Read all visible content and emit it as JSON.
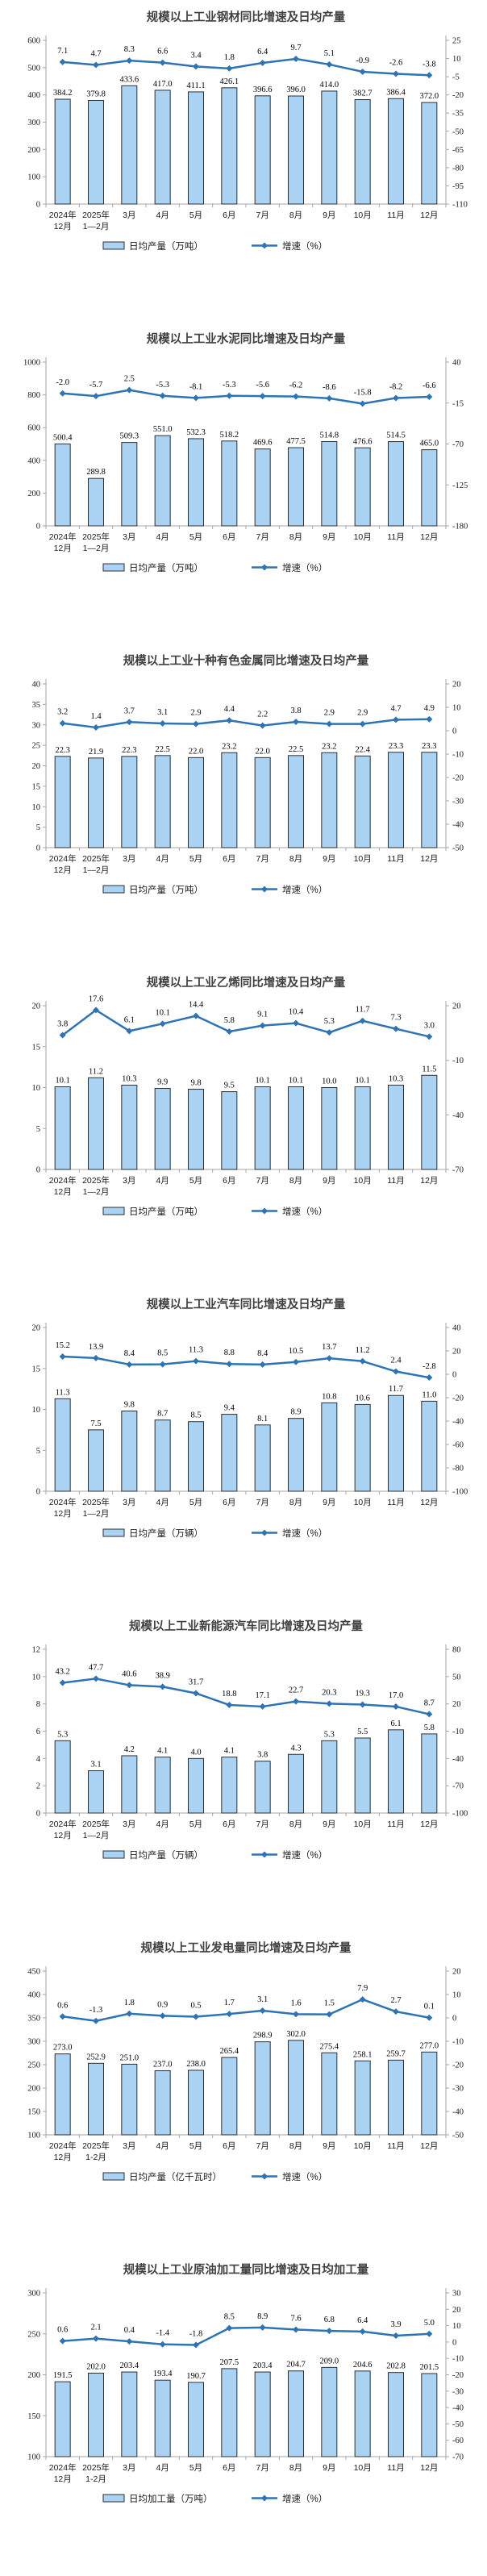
{
  "style": {
    "bar_fill": "#A9D2F3",
    "bar_border": "#2F2F2F",
    "line_color": "#2E74B5",
    "axis_color": "#A6A6A6",
    "tick_label_color": "#1a1a1a",
    "data_label_color": "#000000",
    "title_color": "#404040",
    "background": "#ffffff"
  },
  "legend": {
    "growth_label": "增速（%）"
  },
  "chart_data": [
    {
      "type": "combo",
      "title": "规模以上工业钢材同比增速及日均产量",
      "categories": [
        "2024年\n12月",
        "2025年\n1—2月",
        "3月",
        "4月",
        "5月",
        "6月",
        "7月",
        "8月",
        "9月",
        "10月",
        "11月",
        "12月"
      ],
      "series": [
        {
          "name": "日均产量（万吨）",
          "type": "bar",
          "axis": "left",
          "values": [
            384.2,
            379.8,
            433.6,
            417.0,
            411.1,
            426.1,
            396.6,
            396.0,
            414.0,
            382.7,
            386.4,
            372.0
          ]
        },
        {
          "name": "增速（%）",
          "type": "line",
          "axis": "right",
          "values": [
            7.1,
            4.7,
            8.3,
            6.6,
            3.4,
            1.8,
            6.4,
            9.7,
            5.1,
            -0.9,
            -2.6,
            -3.8
          ]
        }
      ],
      "left_axis": {
        "min": 0,
        "max": 600,
        "step": 100
      },
      "right_axis": {
        "min": -110,
        "max": 25,
        "step": 15
      },
      "legend_position": "bottom",
      "grid": false
    },
    {
      "type": "combo",
      "title": "规模以上工业水泥同比增速及日均产量",
      "categories": [
        "2024年\n12月",
        "2025年\n1—2月",
        "3月",
        "4月",
        "5月",
        "6月",
        "7月",
        "8月",
        "9月",
        "10月",
        "11月",
        "12月"
      ],
      "series": [
        {
          "name": "日均产量（万吨）",
          "type": "bar",
          "axis": "left",
          "values": [
            500.4,
            289.8,
            509.3,
            551.0,
            532.3,
            518.2,
            469.6,
            477.5,
            514.8,
            476.6,
            514.5,
            465.0
          ]
        },
        {
          "name": "增速（%）",
          "type": "line",
          "axis": "right",
          "values": [
            -2.0,
            -5.7,
            2.5,
            -5.3,
            -8.1,
            -5.3,
            -5.6,
            -6.2,
            -8.6,
            -15.8,
            -8.2,
            -6.6
          ]
        }
      ],
      "left_axis": {
        "min": 0,
        "max": 1000,
        "step": 200
      },
      "right_axis": {
        "min": -180,
        "max": 40,
        "step": 55
      },
      "legend_position": "bottom",
      "grid": false
    },
    {
      "type": "combo",
      "title": "规模以上工业十种有色金属同比增速及日均产量",
      "categories": [
        "2024年\n12月",
        "2025年\n1—2月",
        "3月",
        "4月",
        "5月",
        "6月",
        "7月",
        "8月",
        "9月",
        "10月",
        "11月",
        "12月"
      ],
      "series": [
        {
          "name": "日均产量（万吨）",
          "type": "bar",
          "axis": "left",
          "values": [
            22.3,
            21.9,
            22.3,
            22.5,
            22.0,
            23.2,
            22.0,
            22.5,
            23.2,
            22.4,
            23.3,
            23.3
          ]
        },
        {
          "name": "增速（%）",
          "type": "line",
          "axis": "right",
          "values": [
            3.2,
            1.4,
            3.7,
            3.1,
            2.9,
            4.4,
            2.2,
            3.8,
            2.9,
            2.9,
            4.7,
            4.9
          ]
        }
      ],
      "left_axis": {
        "min": 0,
        "max": 40,
        "step": 5
      },
      "right_axis": {
        "min": -50,
        "max": 20,
        "step": 10
      },
      "legend_position": "bottom",
      "grid": false
    },
    {
      "type": "combo",
      "title": "规模以上工业乙烯同比增速及日均产量",
      "categories": [
        "2024年\n12月",
        "2025年\n1—2月",
        "3月",
        "4月",
        "5月",
        "6月",
        "7月",
        "8月",
        "9月",
        "10月",
        "11月",
        "12月"
      ],
      "series": [
        {
          "name": "日均产量（万吨）",
          "type": "bar",
          "axis": "left",
          "values": [
            10.1,
            11.2,
            10.3,
            9.9,
            9.8,
            9.5,
            10.1,
            10.1,
            10.0,
            10.1,
            10.3,
            11.5
          ]
        },
        {
          "name": "增速（%）",
          "type": "line",
          "axis": "right",
          "values": [
            3.8,
            17.6,
            6.1,
            10.1,
            14.4,
            5.8,
            9.1,
            10.4,
            5.3,
            11.7,
            7.3,
            3.0
          ]
        }
      ],
      "left_axis": {
        "min": 0,
        "max": 20,
        "step": 5
      },
      "right_axis": {
        "min": -70,
        "max": 20,
        "step": 30
      },
      "legend_position": "bottom",
      "grid": false
    },
    {
      "type": "combo",
      "title": "规模以上工业汽车同比增速及日均产量",
      "categories": [
        "2024年\n12月",
        "2025年\n1—2月",
        "3月",
        "4月",
        "5月",
        "6月",
        "7月",
        "8月",
        "9月",
        "10月",
        "11月",
        "12月"
      ],
      "series": [
        {
          "name": "日均产量（万辆）",
          "type": "bar",
          "axis": "left",
          "values": [
            11.3,
            7.5,
            9.8,
            8.7,
            8.5,
            9.4,
            8.1,
            8.9,
            10.8,
            10.6,
            11.7,
            11.0
          ]
        },
        {
          "name": "增速（%）",
          "type": "line",
          "axis": "right",
          "values": [
            15.2,
            13.9,
            8.4,
            8.5,
            11.3,
            8.8,
            8.4,
            10.5,
            13.7,
            11.2,
            2.4,
            -2.8
          ]
        }
      ],
      "left_axis": {
        "min": 0,
        "max": 20,
        "step": 5
      },
      "right_axis": {
        "min": -100,
        "max": 40,
        "step": 20
      },
      "legend_position": "bottom",
      "grid": false
    },
    {
      "type": "combo",
      "title": "规模以上工业新能源汽车同比增速及日均产量",
      "categories": [
        "2024年\n12月",
        "2025年\n1—2月",
        "3月",
        "4月",
        "5月",
        "6月",
        "7月",
        "8月",
        "9月",
        "10月",
        "11月",
        "12月"
      ],
      "series": [
        {
          "name": "日均产量（万辆）",
          "type": "bar",
          "axis": "left",
          "values": [
            5.3,
            3.1,
            4.2,
            4.1,
            4.0,
            4.1,
            3.8,
            4.3,
            5.3,
            5.5,
            6.1,
            5.8
          ]
        },
        {
          "name": "增速（%）",
          "type": "line",
          "axis": "right",
          "values": [
            43.2,
            47.7,
            40.6,
            38.9,
            31.7,
            18.8,
            17.1,
            22.7,
            20.3,
            19.3,
            17.0,
            8.7
          ]
        }
      ],
      "left_axis": {
        "min": 0,
        "max": 12,
        "step": 2
      },
      "right_axis": {
        "min": -100,
        "max": 80,
        "step": 30
      },
      "legend_position": "bottom",
      "grid": false
    },
    {
      "type": "combo",
      "title": "规模以上工业发电量同比增速及日均产量",
      "categories": [
        "2024年\n12月",
        "2025年\n1-2月",
        "3月",
        "4月",
        "5月",
        "6月",
        "7月",
        "8月",
        "9月",
        "10月",
        "11月",
        "12月"
      ],
      "series": [
        {
          "name": "日均产量（亿千瓦时）",
          "type": "bar",
          "axis": "left",
          "values": [
            273.0,
            252.9,
            251.0,
            237.0,
            238.0,
            265.4,
            298.9,
            302.0,
            275.4,
            258.1,
            259.7,
            277.0
          ]
        },
        {
          "name": "增速（%）",
          "type": "line",
          "axis": "right",
          "values": [
            0.6,
            -1.3,
            1.8,
            0.9,
            0.5,
            1.7,
            3.1,
            1.6,
            1.5,
            7.9,
            2.7,
            0.1
          ]
        }
      ],
      "left_axis": {
        "min": 100,
        "max": 450,
        "step": 50
      },
      "right_axis": {
        "min": -50,
        "max": 20,
        "step": 10
      },
      "legend_position": "bottom",
      "grid": false
    },
    {
      "type": "combo",
      "title": "规模以上工业原油加工量同比增速及日均加工量",
      "categories": [
        "2024年\n12月",
        "2025年\n1-2月",
        "3月",
        "4月",
        "5月",
        "6月",
        "7月",
        "8月",
        "9月",
        "10月",
        "11月",
        "12月"
      ],
      "series": [
        {
          "name": "日均加工量（万吨）",
          "type": "bar",
          "axis": "left",
          "values": [
            191.5,
            202.0,
            203.4,
            193.4,
            190.7,
            207.5,
            203.4,
            204.7,
            209.0,
            204.6,
            202.8,
            201.5
          ]
        },
        {
          "name": "增速（%）",
          "type": "line",
          "axis": "right",
          "values": [
            0.6,
            2.1,
            0.4,
            -1.4,
            -1.8,
            8.5,
            8.9,
            7.6,
            6.8,
            6.4,
            3.9,
            5.0
          ]
        }
      ],
      "left_axis": {
        "min": 100,
        "max": 300,
        "step": 50
      },
      "right_axis": {
        "min": -70,
        "max": 30,
        "step": 10
      },
      "legend_position": "bottom",
      "grid": false
    }
  ]
}
